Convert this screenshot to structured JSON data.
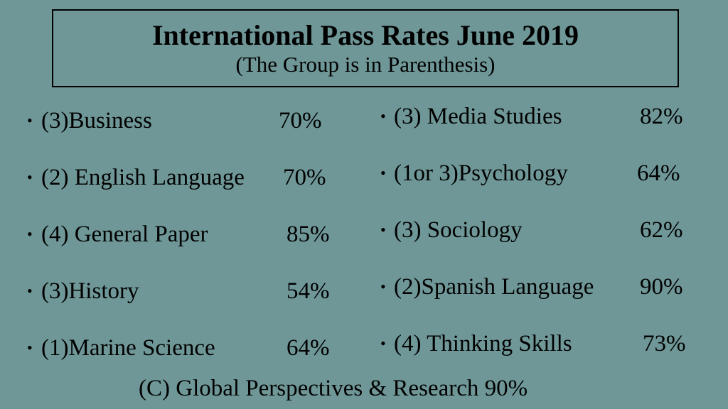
{
  "header": {
    "title": "International Pass Rates June 2019",
    "subtitle": "(The Group is in Parenthesis)"
  },
  "bullet_glyph": "•",
  "left_column": [
    {
      "subject": "(3)Business",
      "rate": "70%"
    },
    {
      "subject": "(2) English Language",
      "rate": "70%"
    },
    {
      "subject": "(4) General Paper",
      "rate": "85%"
    },
    {
      "subject": "(3)History",
      "rate": "54%"
    },
    {
      "subject": "(1)Marine Science",
      "rate": "64%"
    }
  ],
  "right_column": [
    {
      "subject": "(3) Media Studies",
      "rate": "82%"
    },
    {
      "subject": "(1or 3)Psychology",
      "rate": "64%"
    },
    {
      "subject": "(3) Sociology",
      "rate": "62%"
    },
    {
      "subject": "(2)Spanish Language",
      "rate": "90%"
    },
    {
      "subject": "(4) Thinking Skills",
      "rate": "73%"
    }
  ],
  "footer": {
    "text": "(C) Global Perspectives & Research  90%"
  },
  "colors": {
    "background": "#6f9797",
    "text": "#000000"
  }
}
